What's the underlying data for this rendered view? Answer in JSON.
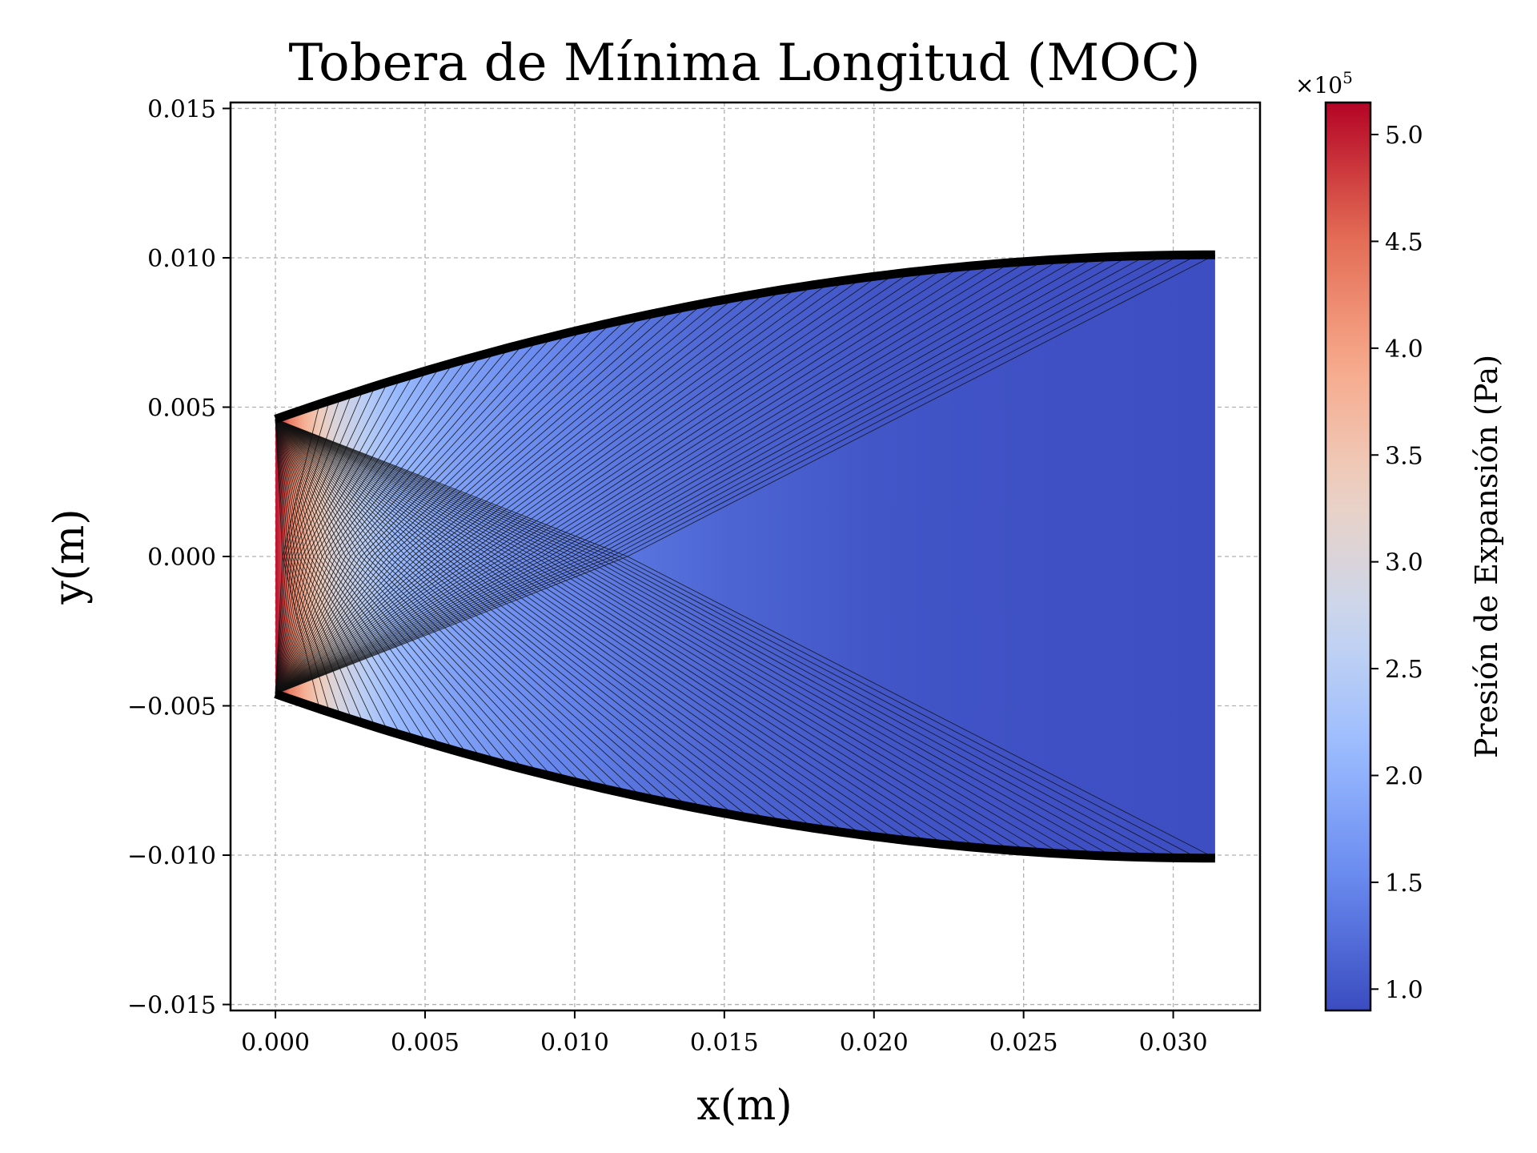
{
  "chart_data": {
    "type": "area",
    "title": "Tobera de Mínima Longitud (MOC)",
    "xlabel": "x(m)",
    "ylabel": "y(m)",
    "xlim": [
      -0.0015,
      0.0329
    ],
    "ylim": [
      -0.0152,
      0.0152
    ],
    "xticks": [
      0.0,
      0.005,
      0.01,
      0.015,
      0.02,
      0.025,
      0.03
    ],
    "xtick_labels": [
      "0.000",
      "0.005",
      "0.010",
      "0.015",
      "0.020",
      "0.025",
      "0.030"
    ],
    "yticks": [
      0.015,
      0.01,
      0.005,
      0.0,
      -0.005,
      -0.01,
      -0.015
    ],
    "ytick_labels": [
      "0.015",
      "0.010",
      "0.005",
      "0.000",
      "−0.005",
      "−0.010",
      "−0.015"
    ],
    "grid": true,
    "nozzle_wall": {
      "throat_half_height": 0.0046,
      "exit_half_height": 0.0101,
      "length": 0.0314,
      "upper_x": [
        0.0,
        0.005,
        0.01,
        0.015,
        0.02,
        0.025,
        0.03,
        0.0314
      ],
      "upper_y": [
        0.0046,
        0.0062,
        0.0076,
        0.0087,
        0.0095,
        0.0099,
        0.01005,
        0.0101
      ]
    },
    "characteristic_lines": {
      "count": 60,
      "origin": "throat-corners",
      "centerline_crossing_x": 0.0118
    },
    "colorbar": {
      "label": "Presión de Expansión (Pa)",
      "multiplier": "×10",
      "multiplier_exp": "5",
      "min": 0.9,
      "max": 5.15,
      "ticks": [
        1.0,
        1.5,
        2.0,
        2.5,
        3.0,
        3.5,
        4.0,
        4.5,
        5.0
      ],
      "tick_labels": [
        "1.0",
        "1.5",
        "2.0",
        "2.5",
        "3.0",
        "3.5",
        "4.0",
        "4.5",
        "5.0"
      ],
      "colormap": "coolwarm",
      "colors": [
        "#3b4cc0",
        "#6788ee",
        "#9abbff",
        "#c9d7f0",
        "#edd1c2",
        "#f7a889",
        "#e26952",
        "#b40426"
      ]
    },
    "pressure_profile": {
      "x": [
        0.0,
        0.0005,
        0.001,
        0.0015,
        0.002,
        0.003,
        0.004,
        0.006,
        0.008,
        0.01,
        0.012,
        0.015,
        0.02,
        0.025,
        0.0314
      ],
      "p": [
        5.1,
        4.3,
        3.8,
        3.4,
        3.0,
        2.5,
        2.1,
        1.8,
        1.6,
        1.45,
        1.3,
        1.15,
        1.0,
        0.95,
        0.92
      ]
    }
  }
}
